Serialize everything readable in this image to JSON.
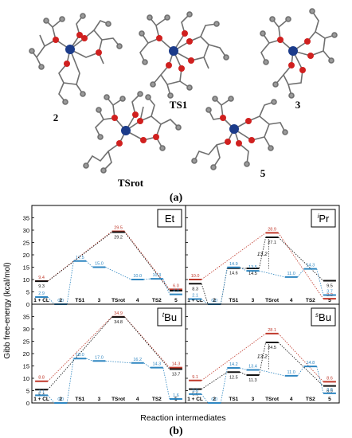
{
  "panel_a": {
    "label": "(a)",
    "molecules": [
      {
        "id": "2",
        "label": "2"
      },
      {
        "id": "TS1",
        "label": "TS1"
      },
      {
        "id": "3",
        "label": "3"
      },
      {
        "id": "TSrot",
        "label": "TSrot"
      },
      {
        "id": "5",
        "label": "5"
      }
    ]
  },
  "panel_b": {
    "label": "(b)",
    "y_axis_label": "Gibb free-energy (kcal/mol)",
    "x_axis_label": "Reaction intermediates"
  },
  "chart_data": [
    {
      "type": "line",
      "panel_tag": "Et",
      "categories": [
        "1 + CL",
        "2",
        "TS1",
        "3",
        "TSrot",
        "4",
        "TS2",
        "5"
      ],
      "ylim": [
        0,
        40
      ],
      "yticks": [
        0,
        5,
        10,
        15,
        20,
        25,
        30,
        35
      ],
      "series": [
        {
          "color": "#c0392b",
          "points": [
            [
              0,
              9.4
            ],
            [
              4,
              29.5
            ],
            [
              7,
              6.0
            ]
          ],
          "labels": [
            "9.4",
            "29.5",
            "6.0"
          ]
        },
        {
          "color": "#111111",
          "points": [
            [
              0,
              9.3
            ],
            [
              4,
              29.2
            ],
            [
              7,
              5.5
            ]
          ],
          "labels": [
            "9.3",
            "29.2",
            ""
          ]
        },
        {
          "color": "#2e86c1",
          "points": [
            [
              0,
              2.9
            ],
            [
              1,
              0.0
            ],
            [
              2,
              17.5
            ],
            [
              3,
              15.0
            ],
            [
              5,
              10.0
            ],
            [
              6,
              10.3
            ],
            [
              7,
              4.0
            ]
          ],
          "labels": [
            "2.9",
            "0.0",
            "17.5",
            "15.0",
            "10.0",
            "10.3",
            "4.0"
          ]
        }
      ]
    },
    {
      "type": "line",
      "panel_tag": "iPr",
      "tag_sup": "i",
      "tag_main": "Pr",
      "categories": [
        "1 + CL",
        "2",
        "TS1",
        "3",
        "TSrot",
        "4",
        "TS2",
        "5"
      ],
      "ylim": [
        0,
        40
      ],
      "yticks": [
        0,
        5,
        10,
        15,
        20,
        25,
        30,
        35
      ],
      "annotation": "13.2",
      "series": [
        {
          "color": "#c0392b",
          "points": [
            [
              0,
              10.0
            ],
            [
              4,
              28.9
            ],
            [
              7,
              2.2
            ]
          ],
          "labels": [
            "10.0",
            "28.9",
            "2.2"
          ]
        },
        {
          "color": "#111111",
          "points": [
            [
              0,
              8.3
            ],
            [
              1,
              0.0
            ],
            [
              2,
              14.6
            ],
            [
              3,
              14.5
            ],
            [
              4,
              27.1
            ],
            [
              7,
              9.5
            ]
          ],
          "labels": [
            "8.3",
            "",
            "14.6",
            "14.5",
            "27.1",
            "9.5"
          ]
        },
        {
          "color": "#2e86c1",
          "points": [
            [
              0,
              2.1
            ],
            [
              1,
              0.0
            ],
            [
              2,
              14.9
            ],
            [
              3,
              13.5
            ],
            [
              5,
              11.0
            ],
            [
              6,
              14.3
            ],
            [
              7,
              3.7
            ]
          ],
          "labels": [
            "2.1",
            "0.0",
            "14.9",
            "13.5",
            "11.0",
            "14.3",
            "3.7"
          ]
        }
      ]
    },
    {
      "type": "line",
      "panel_tag": "tBu",
      "tag_sup": "t",
      "tag_main": "Bu",
      "categories": [
        "1 + CL",
        "2",
        "TS1",
        "3",
        "TSrot",
        "4",
        "TS2",
        "5"
      ],
      "ylim": [
        0,
        40
      ],
      "yticks": [
        0,
        5,
        10,
        15,
        20,
        25,
        30,
        35
      ],
      "series": [
        {
          "color": "#c0392b",
          "points": [
            [
              0,
              8.8
            ],
            [
              4,
              34.9
            ],
            [
              7,
              14.3
            ]
          ],
          "labels": [
            "8.8",
            "34.9",
            "14.3"
          ]
        },
        {
          "color": "#111111",
          "points": [
            [
              0,
              5.4
            ],
            [
              4,
              34.8
            ],
            [
              7,
              13.7
            ]
          ],
          "labels": [
            "5.4",
            "34.8",
            "13.7"
          ]
        },
        {
          "color": "#2e86c1",
          "points": [
            [
              0,
              3.1
            ],
            [
              1,
              0.0
            ],
            [
              2,
              18.0
            ],
            [
              3,
              17.0
            ],
            [
              5,
              16.2
            ],
            [
              6,
              14.3
            ],
            [
              7,
              1.6
            ]
          ],
          "labels": [
            "3.1",
            "0.0",
            "18.0",
            "17.0",
            "16.2",
            "14.3",
            "1.6"
          ]
        }
      ]
    },
    {
      "type": "line",
      "panel_tag": "sBu",
      "tag_sup": "s",
      "tag_main": "Bu",
      "categories": [
        "1 + CL",
        "2",
        "TS1",
        "3",
        "TSrot",
        "4",
        "TS2",
        "5"
      ],
      "ylim": [
        0,
        40
      ],
      "yticks": [
        0,
        5,
        10,
        15,
        20,
        25,
        30,
        35
      ],
      "annotation": "13.2",
      "series": [
        {
          "color": "#c0392b",
          "points": [
            [
              0,
              9.1
            ],
            [
              4,
              28.1
            ],
            [
              7,
              8.6
            ]
          ],
          "labels": [
            "9.1",
            "28.1",
            "8.6"
          ]
        },
        {
          "color": "#111111",
          "points": [
            [
              0,
              5.6
            ],
            [
              2,
              12.5
            ],
            [
              3,
              11.3
            ],
            [
              4,
              24.5
            ],
            [
              7,
              6.9
            ]
          ],
          "labels": [
            "5.6",
            "12.5",
            "11.3",
            "24.5",
            "6.9"
          ]
        },
        {
          "color": "#2e86c1",
          "points": [
            [
              0,
              3.6
            ],
            [
              1,
              0.0
            ],
            [
              2,
              14.2
            ],
            [
              3,
              13.4
            ],
            [
              5,
              11.0
            ],
            [
              6,
              14.8
            ],
            [
              7,
              3.9
            ]
          ],
          "labels": [
            "3.6",
            "0.0",
            "14.2",
            "13.4",
            "11.0",
            "14.8",
            "3.9"
          ]
        }
      ]
    }
  ]
}
